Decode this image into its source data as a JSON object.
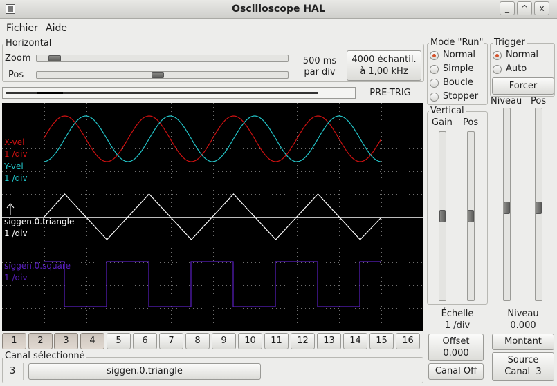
{
  "window": {
    "title": "Oscilloscope HAL",
    "controls": [
      "_",
      "^",
      "x"
    ]
  },
  "menu": [
    "Fichier",
    "Aide"
  ],
  "horizontal": {
    "label": "Horizontal",
    "zoom_label": "Zoom",
    "pos_label": "Pos",
    "timebase_value": "500 ms",
    "timebase_unit": "par div",
    "samples_line1": "4000 échantil.",
    "samples_line2": "à 1,00 kHz",
    "pretrig_label": "PRE-TRIG",
    "zoom_level": 0.05,
    "pos_level": 0.48
  },
  "run_mode": {
    "label": "Mode \"Run\"",
    "options": [
      "Normal",
      "Simple",
      "Boucle",
      "Stopper"
    ],
    "selected": 0
  },
  "trigger": {
    "label": "Trigger",
    "options": [
      "Normal",
      "Auto"
    ],
    "selected": 0,
    "force_label": "Forcer",
    "level_label": "Niveau",
    "pos_label": "Pos",
    "level_caption": "Niveau",
    "level_value": "0.000",
    "edge_button": "Montant",
    "source_line1": "Source",
    "source_line2": "Canal  3",
    "level_slider": 0.52,
    "pos_slider": 0.52
  },
  "vertical": {
    "label": "Vertical",
    "gain_label": "Gain",
    "pos_label": "Pos",
    "scale_caption": "Échelle",
    "scale_value": "1 /div",
    "offset_line1": "Offset",
    "offset_line2": "0.000",
    "channel_off_button": "Canal Off",
    "gain_slider": 0.5,
    "pos_slider": 0.5
  },
  "traces": [
    {
      "name": "X-vel",
      "scale": "1 /div",
      "color": "#cc1111"
    },
    {
      "name": "Y-vel",
      "scale": "1 /div",
      "color": "#22c4c8"
    },
    {
      "name": "siggen.0.triangle",
      "scale": "1 /div",
      "color": "#ffffff"
    },
    {
      "name": "siggen.0.square",
      "scale": "1 /div",
      "color": "#5a1fc0"
    }
  ],
  "channels": [
    "1",
    "2",
    "3",
    "4",
    "5",
    "6",
    "7",
    "8",
    "9",
    "10",
    "11",
    "12",
    "13",
    "14",
    "15",
    "16"
  ],
  "active_channels": [
    1,
    2,
    3,
    4
  ],
  "selected_channel": {
    "label": "Canal sélectionné",
    "number": "3",
    "name": "siggen.0.triangle"
  },
  "colors": {
    "scope_bg": "#000000",
    "grid": "#6f6f6f",
    "accent_radio": "#d4512a"
  },
  "icons": {
    "window_menu": "window-menu-icon",
    "minimize": "minimize-icon",
    "maximize": "maximize-icon",
    "close": "close-icon",
    "trigger_marker": "up-arrow-icon"
  }
}
